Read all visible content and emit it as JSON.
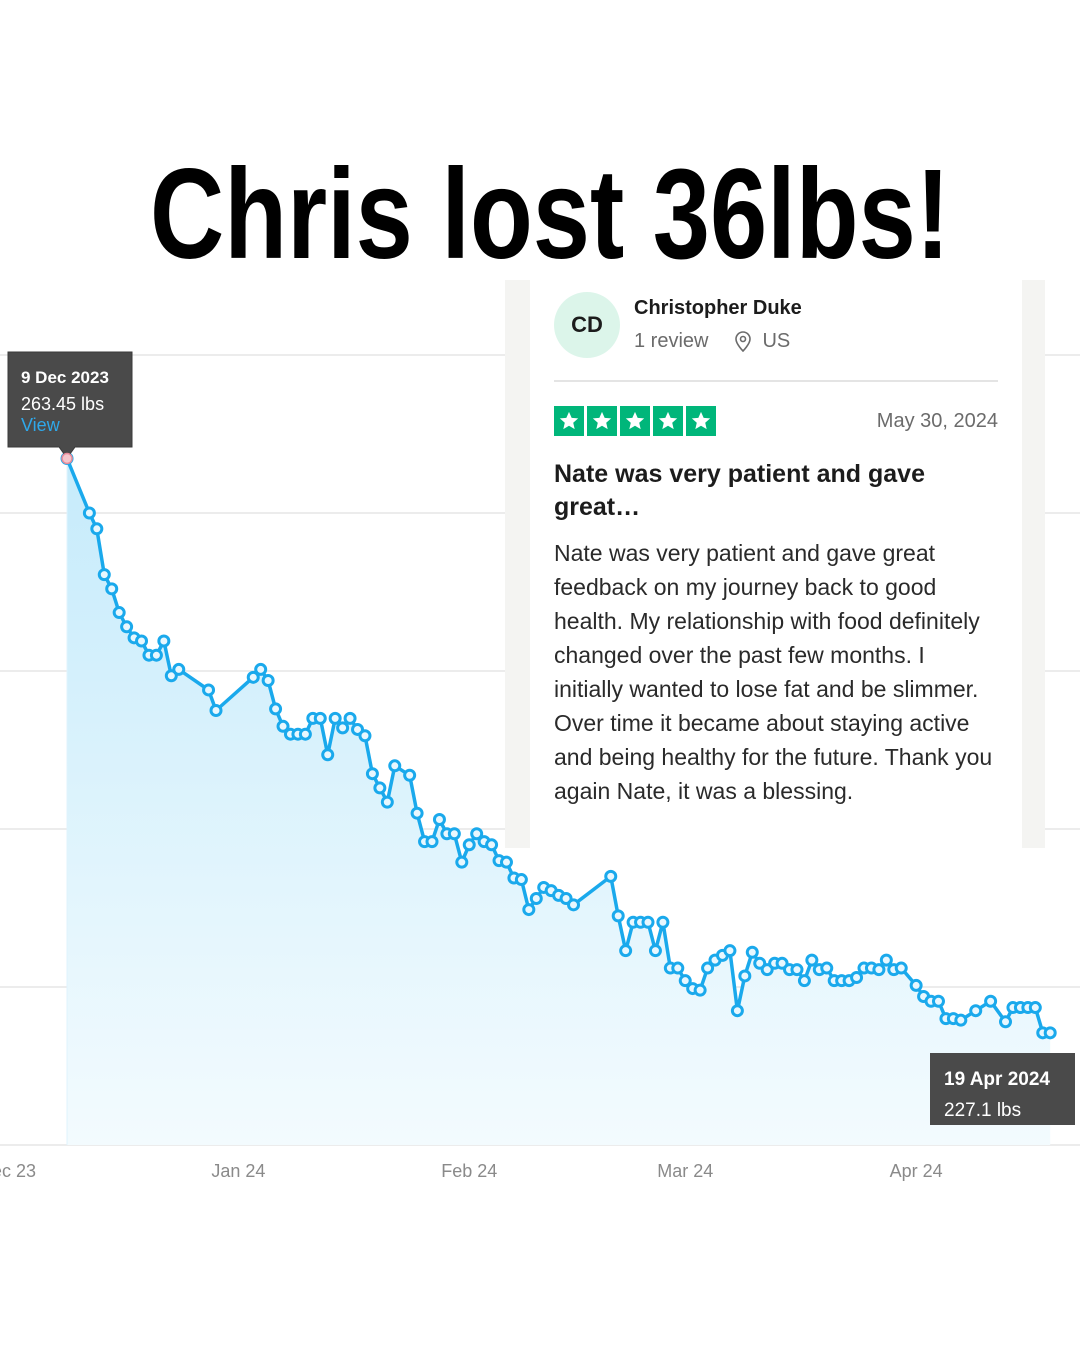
{
  "headline": "Chris lost 36lbs!",
  "chart_data": {
    "type": "line",
    "color": "#1aa9ec",
    "grid": true,
    "xlim": [
      "2023-11-30",
      "2024-04-23"
    ],
    "xticks": [
      {
        "value": "2023-12-01",
        "label": "Dec 23"
      },
      {
        "value": "2024-01-01",
        "label": "Jan 24"
      },
      {
        "value": "2024-02-01",
        "label": "Feb 24"
      },
      {
        "value": "2024-03-01",
        "label": "Mar 24"
      },
      {
        "value": "2024-04-01",
        "label": "Apr 24"
      }
    ],
    "ylim": [
      220,
      270
    ],
    "yticks": [
      220,
      230,
      240,
      250,
      260,
      270
    ],
    "x": [
      "2023-12-09",
      "2023-12-12",
      "2023-12-13",
      "2023-12-14",
      "2023-12-15",
      "2023-12-16",
      "2023-12-17",
      "2023-12-18",
      "2023-12-19",
      "2023-12-20",
      "2023-12-21",
      "2023-12-22",
      "2023-12-23",
      "2023-12-24",
      "2023-12-28",
      "2023-12-29",
      "2024-01-03",
      "2024-01-04",
      "2024-01-05",
      "2024-01-06",
      "2024-01-07",
      "2024-01-08",
      "2024-01-09",
      "2024-01-10",
      "2024-01-11",
      "2024-01-12",
      "2024-01-13",
      "2024-01-14",
      "2024-01-15",
      "2024-01-16",
      "2024-01-17",
      "2024-01-18",
      "2024-01-19",
      "2024-01-20",
      "2024-01-21",
      "2024-01-22",
      "2024-01-24",
      "2024-01-25",
      "2024-01-26",
      "2024-01-27",
      "2024-01-28",
      "2024-01-29",
      "2024-01-30",
      "2024-01-31",
      "2024-02-01",
      "2024-02-02",
      "2024-02-03",
      "2024-02-04",
      "2024-02-05",
      "2024-02-06",
      "2024-02-07",
      "2024-02-08",
      "2024-02-09",
      "2024-02-10",
      "2024-02-11",
      "2024-02-12",
      "2024-02-13",
      "2024-02-14",
      "2024-02-15",
      "2024-02-20",
      "2024-02-21",
      "2024-02-22",
      "2024-02-23",
      "2024-02-24",
      "2024-02-25",
      "2024-02-26",
      "2024-02-27",
      "2024-02-28",
      "2024-02-29",
      "2024-03-01",
      "2024-03-02",
      "2024-03-03",
      "2024-03-04",
      "2024-03-05",
      "2024-03-06",
      "2024-03-07",
      "2024-03-08",
      "2024-03-09",
      "2024-03-10",
      "2024-03-11",
      "2024-03-12",
      "2024-03-13",
      "2024-03-14",
      "2024-03-15",
      "2024-03-16",
      "2024-03-17",
      "2024-03-18",
      "2024-03-19",
      "2024-03-20",
      "2024-03-21",
      "2024-03-22",
      "2024-03-23",
      "2024-03-24",
      "2024-03-25",
      "2024-03-26",
      "2024-03-27",
      "2024-03-28",
      "2024-03-29",
      "2024-03-30",
      "2024-04-01",
      "2024-04-02",
      "2024-04-03",
      "2024-04-04",
      "2024-04-05",
      "2024-04-06",
      "2024-04-07",
      "2024-04-09",
      "2024-04-11",
      "2024-04-13",
      "2024-04-14",
      "2024-04-15",
      "2024-04-16",
      "2024-04-17",
      "2024-04-18",
      "2024-04-19"
    ],
    "values": [
      263.45,
      260.0,
      259.0,
      256.1,
      255.2,
      253.7,
      252.8,
      252.1,
      251.9,
      251.0,
      251.0,
      251.9,
      249.7,
      250.1,
      248.8,
      247.5,
      249.6,
      250.1,
      249.4,
      247.6,
      246.5,
      246.0,
      246.0,
      246.0,
      247.0,
      247.0,
      244.7,
      247.0,
      246.4,
      247.0,
      246.3,
      245.9,
      243.5,
      242.6,
      241.7,
      244.0,
      243.4,
      241.0,
      239.2,
      239.2,
      240.6,
      239.7,
      239.7,
      237.9,
      239.0,
      239.7,
      239.2,
      239.0,
      238.0,
      237.9,
      236.9,
      236.8,
      234.9,
      235.6,
      236.3,
      236.1,
      235.8,
      235.6,
      235.2,
      237.0,
      234.5,
      232.3,
      234.1,
      234.1,
      234.1,
      232.3,
      234.1,
      231.2,
      231.2,
      230.4,
      229.9,
      229.8,
      231.2,
      231.7,
      232.0,
      232.3,
      228.5,
      230.7,
      232.2,
      231.5,
      231.1,
      231.5,
      231.5,
      231.1,
      231.1,
      230.4,
      231.7,
      231.1,
      231.2,
      230.4,
      230.4,
      230.4,
      230.6,
      231.2,
      231.2,
      231.1,
      231.7,
      231.1,
      231.2,
      230.1,
      229.4,
      229.1,
      229.1,
      228.0,
      228.0,
      227.9,
      228.5,
      229.1,
      227.8,
      228.7,
      228.7,
      228.7,
      228.7,
      227.1,
      227.1
    ],
    "tooltips": [
      {
        "date": "9 Dec 2023",
        "label": "263.45 lbs",
        "link": "View"
      },
      {
        "date": "19 Apr 2024",
        "label": "227.1 lbs"
      }
    ]
  },
  "review": {
    "initials": "CD",
    "name": "Christopher Duke",
    "count": "1 review",
    "country": "US",
    "rating": 5,
    "date": "May 30, 2024",
    "title": "Nate was very patient and gave great…",
    "body": "Nate was very patient and gave great feedback on my journey back to good health. My relationship with food definitely changed over the past few months. I initially wanted to lose fat and be slimmer. Over time it became about staying active and being healthy for the future. Thank you again Nate, it was a blessing."
  }
}
